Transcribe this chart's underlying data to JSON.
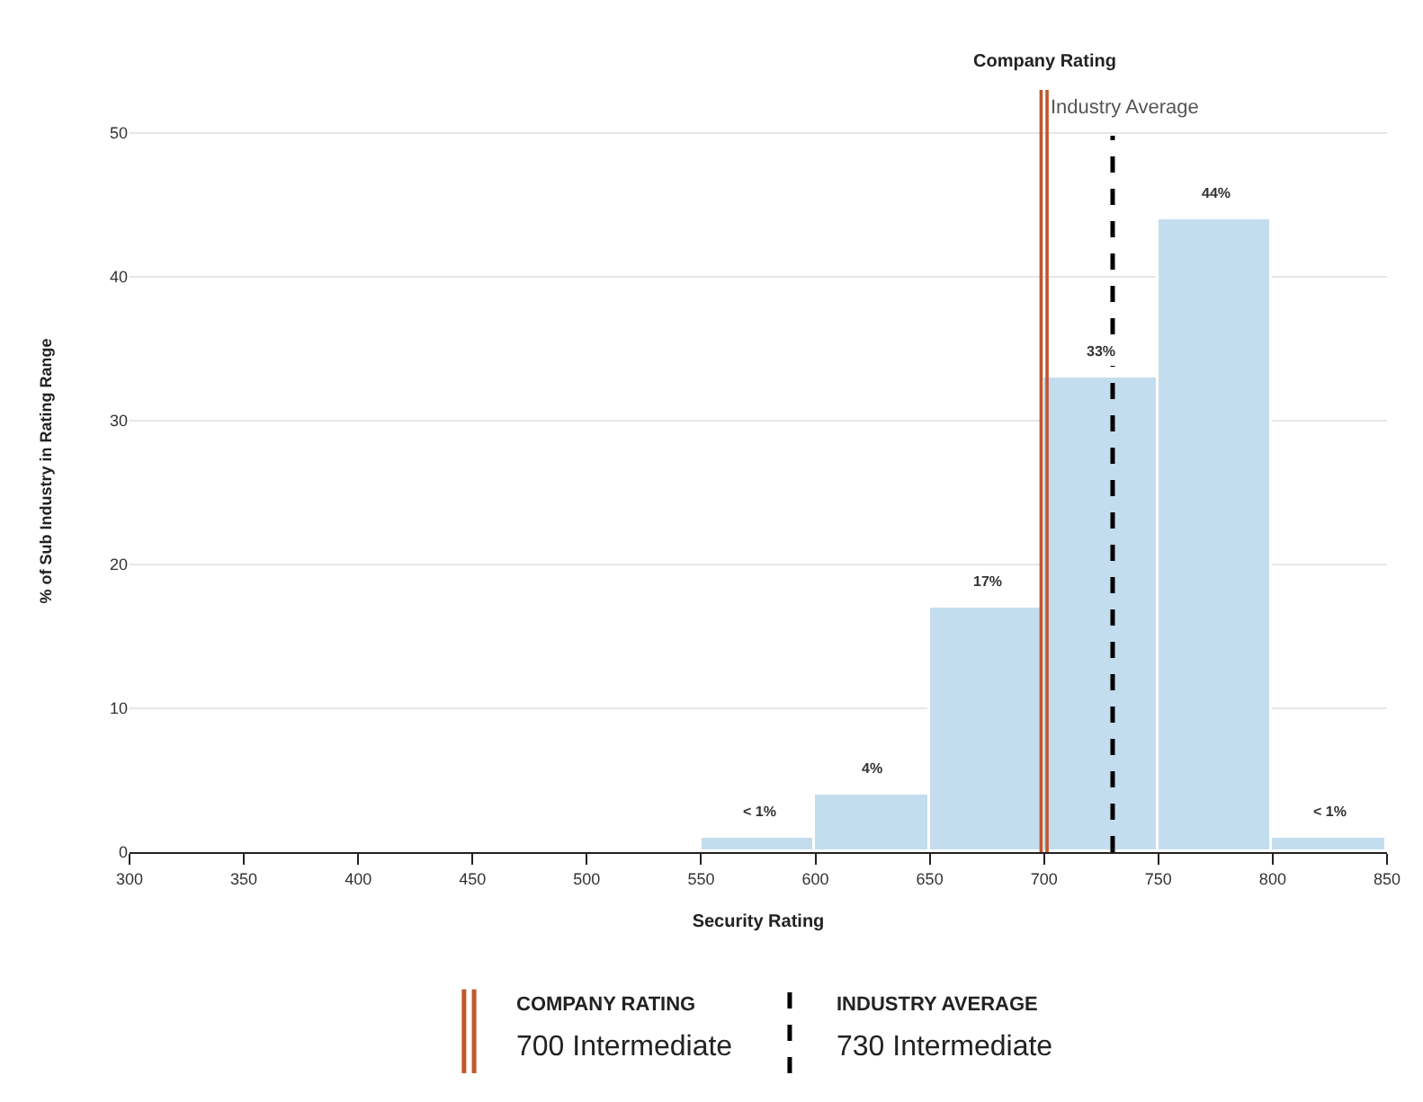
{
  "chart_data": {
    "type": "histogram",
    "xlabel": "Security Rating",
    "ylabel": "% of Sub Industry in Rating Range",
    "bins": [
      550,
      600,
      650,
      700,
      750,
      800,
      850
    ],
    "values": [
      1,
      4,
      17,
      33,
      44,
      1
    ],
    "color": "#c3ddef",
    "value_labels": [
      "< 1%",
      "4%",
      "17%",
      "33%",
      "44%",
      "< 1%"
    ],
    "xlim": [
      300,
      850
    ],
    "xticks": [
      300,
      350,
      400,
      450,
      500,
      550,
      600,
      650,
      700,
      750,
      800,
      850
    ],
    "ylim": [
      0,
      53
    ],
    "yticks": [
      0,
      10,
      20,
      30,
      40,
      50
    ],
    "grid": "y",
    "ref_lines": [
      {
        "axis": "x",
        "value": 700,
        "label": "Company Rating",
        "color": "#c0562b",
        "line_style": "solid"
      },
      {
        "axis": "x",
        "value": 730,
        "label": "Industry Average",
        "color": "#000000",
        "line_style": "dashed"
      }
    ],
    "annotations": [
      "COMPANY RATING",
      "700 Intermediate",
      "INDUSTRY AVERAGE",
      "730 Intermediate"
    ]
  }
}
